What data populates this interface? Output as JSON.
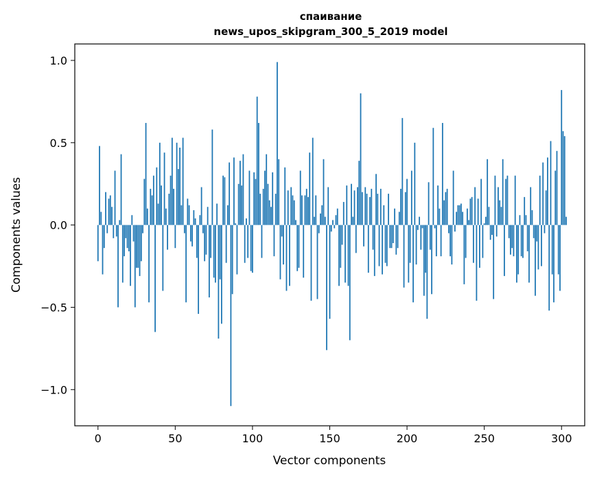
{
  "chart_data": {
    "type": "bar",
    "title_line1": "спаивание",
    "title_line2": "news_upos_skipgram_300_5_2019 model",
    "xlabel": "Vector components",
    "ylabel": "Components values",
    "xlim": [
      -15,
      315
    ],
    "ylim": [
      -1.22,
      1.1
    ],
    "xticks": [
      0,
      50,
      100,
      150,
      200,
      250,
      300
    ],
    "xtick_labels": [
      "0",
      "50",
      "100",
      "150",
      "200",
      "250",
      "300"
    ],
    "yticks": [
      -1.0,
      -0.5,
      0.0,
      0.5,
      1.0
    ],
    "ytick_labels": [
      "−1.0",
      "−0.5",
      "0.0",
      "0.5",
      "1.0"
    ],
    "bar_color": "#1f77b4",
    "values": [
      -0.22,
      0.48,
      0.08,
      -0.3,
      -0.14,
      0.2,
      -0.05,
      0.16,
      0.18,
      0.11,
      -0.08,
      0.33,
      -0.07,
      -0.5,
      0.03,
      0.43,
      -0.35,
      -0.19,
      -0.08,
      -0.14,
      -0.16,
      -0.37,
      0.06,
      -0.1,
      -0.5,
      -0.26,
      -0.26,
      -0.31,
      -0.22,
      -0.05,
      0.28,
      0.62,
      0.1,
      -0.47,
      0.22,
      0.18,
      0.3,
      -0.65,
      0.35,
      0.13,
      0.5,
      0.24,
      -0.4,
      0.44,
      0.1,
      -0.15,
      0.19,
      0.3,
      0.53,
      0.22,
      -0.14,
      0.5,
      0.34,
      0.47,
      0.12,
      0.53,
      -0.05,
      -0.47,
      0.16,
      0.12,
      -0.1,
      -0.13,
      0.09,
      0.04,
      -0.2,
      -0.54,
      0.06,
      0.23,
      -0.05,
      -0.22,
      -0.18,
      0.11,
      -0.44,
      -0.2,
      0.58,
      -0.32,
      -0.35,
      0.13,
      -0.69,
      -0.33,
      -0.6,
      0.3,
      0.29,
      -0.23,
      0.12,
      0.38,
      -1.1,
      -0.42,
      0.41,
      0.01,
      -0.3,
      0.25,
      0.39,
      0.24,
      0.43,
      -0.23,
      0.04,
      -0.2,
      0.33,
      -0.28,
      -0.29,
      0.32,
      0.28,
      0.78,
      0.62,
      0.19,
      -0.2,
      0.22,
      0.33,
      0.43,
      0.25,
      0.15,
      0.11,
      0.32,
      -0.19,
      0.19,
      0.99,
      0.4,
      -0.33,
      -0.07,
      -0.24,
      0.35,
      -0.4,
      0.21,
      -0.37,
      0.23,
      0.18,
      0.15,
      0.03,
      -0.28,
      -0.26,
      0.33,
      0.18,
      -0.32,
      0.18,
      0.22,
      0.17,
      0.44,
      -0.46,
      0.53,
      0.05,
      0.18,
      -0.45,
      -0.05,
      0.07,
      0.12,
      0.4,
      0.05,
      -0.76,
      0.23,
      -0.57,
      -0.04,
      0.03,
      -0.02,
      0.06,
      0.1,
      -0.37,
      -0.26,
      -0.12,
      0.14,
      -0.35,
      0.24,
      -0.37,
      -0.7,
      0.25,
      0.05,
      0.21,
      -0.17,
      0.23,
      0.39,
      0.8,
      0.2,
      -0.13,
      0.23,
      0.19,
      -0.29,
      0.17,
      0.22,
      -0.15,
      -0.31,
      0.31,
      0.19,
      -0.25,
      0.22,
      -0.3,
      0.12,
      -0.23,
      -0.25,
      0.19,
      -0.14,
      -0.14,
      -0.11,
      0.1,
      -0.18,
      -0.14,
      0.08,
      0.22,
      0.65,
      -0.38,
      0.2,
      0.28,
      -0.35,
      -0.23,
      0.33,
      -0.47,
      0.5,
      -0.24,
      -0.03,
      0.05,
      -0.15,
      -0.02,
      -0.43,
      -0.29,
      -0.57,
      0.26,
      -0.15,
      -0.42,
      0.59,
      -0.02,
      -0.19,
      0.24,
      0.1,
      -0.19,
      0.62,
      0.15,
      0.2,
      0.22,
      -0.05,
      -0.19,
      -0.24,
      0.33,
      -0.04,
      0.08,
      0.12,
      0.12,
      0.13,
      0.08,
      -0.36,
      -0.2,
      0.1,
      0.03,
      0.16,
      0.17,
      -0.23,
      0.23,
      -0.46,
      0.16,
      -0.26,
      0.28,
      -0.2,
      0.01,
      0.05,
      0.4,
      0.11,
      -0.09,
      -0.06,
      -0.45,
      0.3,
      -0.07,
      0.23,
      0.15,
      0.11,
      0.4,
      -0.31,
      0.28,
      0.3,
      -0.08,
      -0.18,
      -0.14,
      -0.19,
      0.3,
      -0.35,
      -0.3,
      0.06,
      -0.19,
      -0.2,
      0.17,
      0.06,
      -0.16,
      -0.35,
      0.23,
      0.09,
      -0.08,
      -0.43,
      -0.1,
      -0.27,
      0.3,
      -0.25,
      0.38,
      -0.05,
      0.21,
      0.41,
      -0.52,
      0.51,
      -0.3,
      -0.47,
      0.33,
      0.45,
      -0.3,
      -0.4,
      0.82,
      0.57,
      0.54,
      0.05
    ]
  }
}
